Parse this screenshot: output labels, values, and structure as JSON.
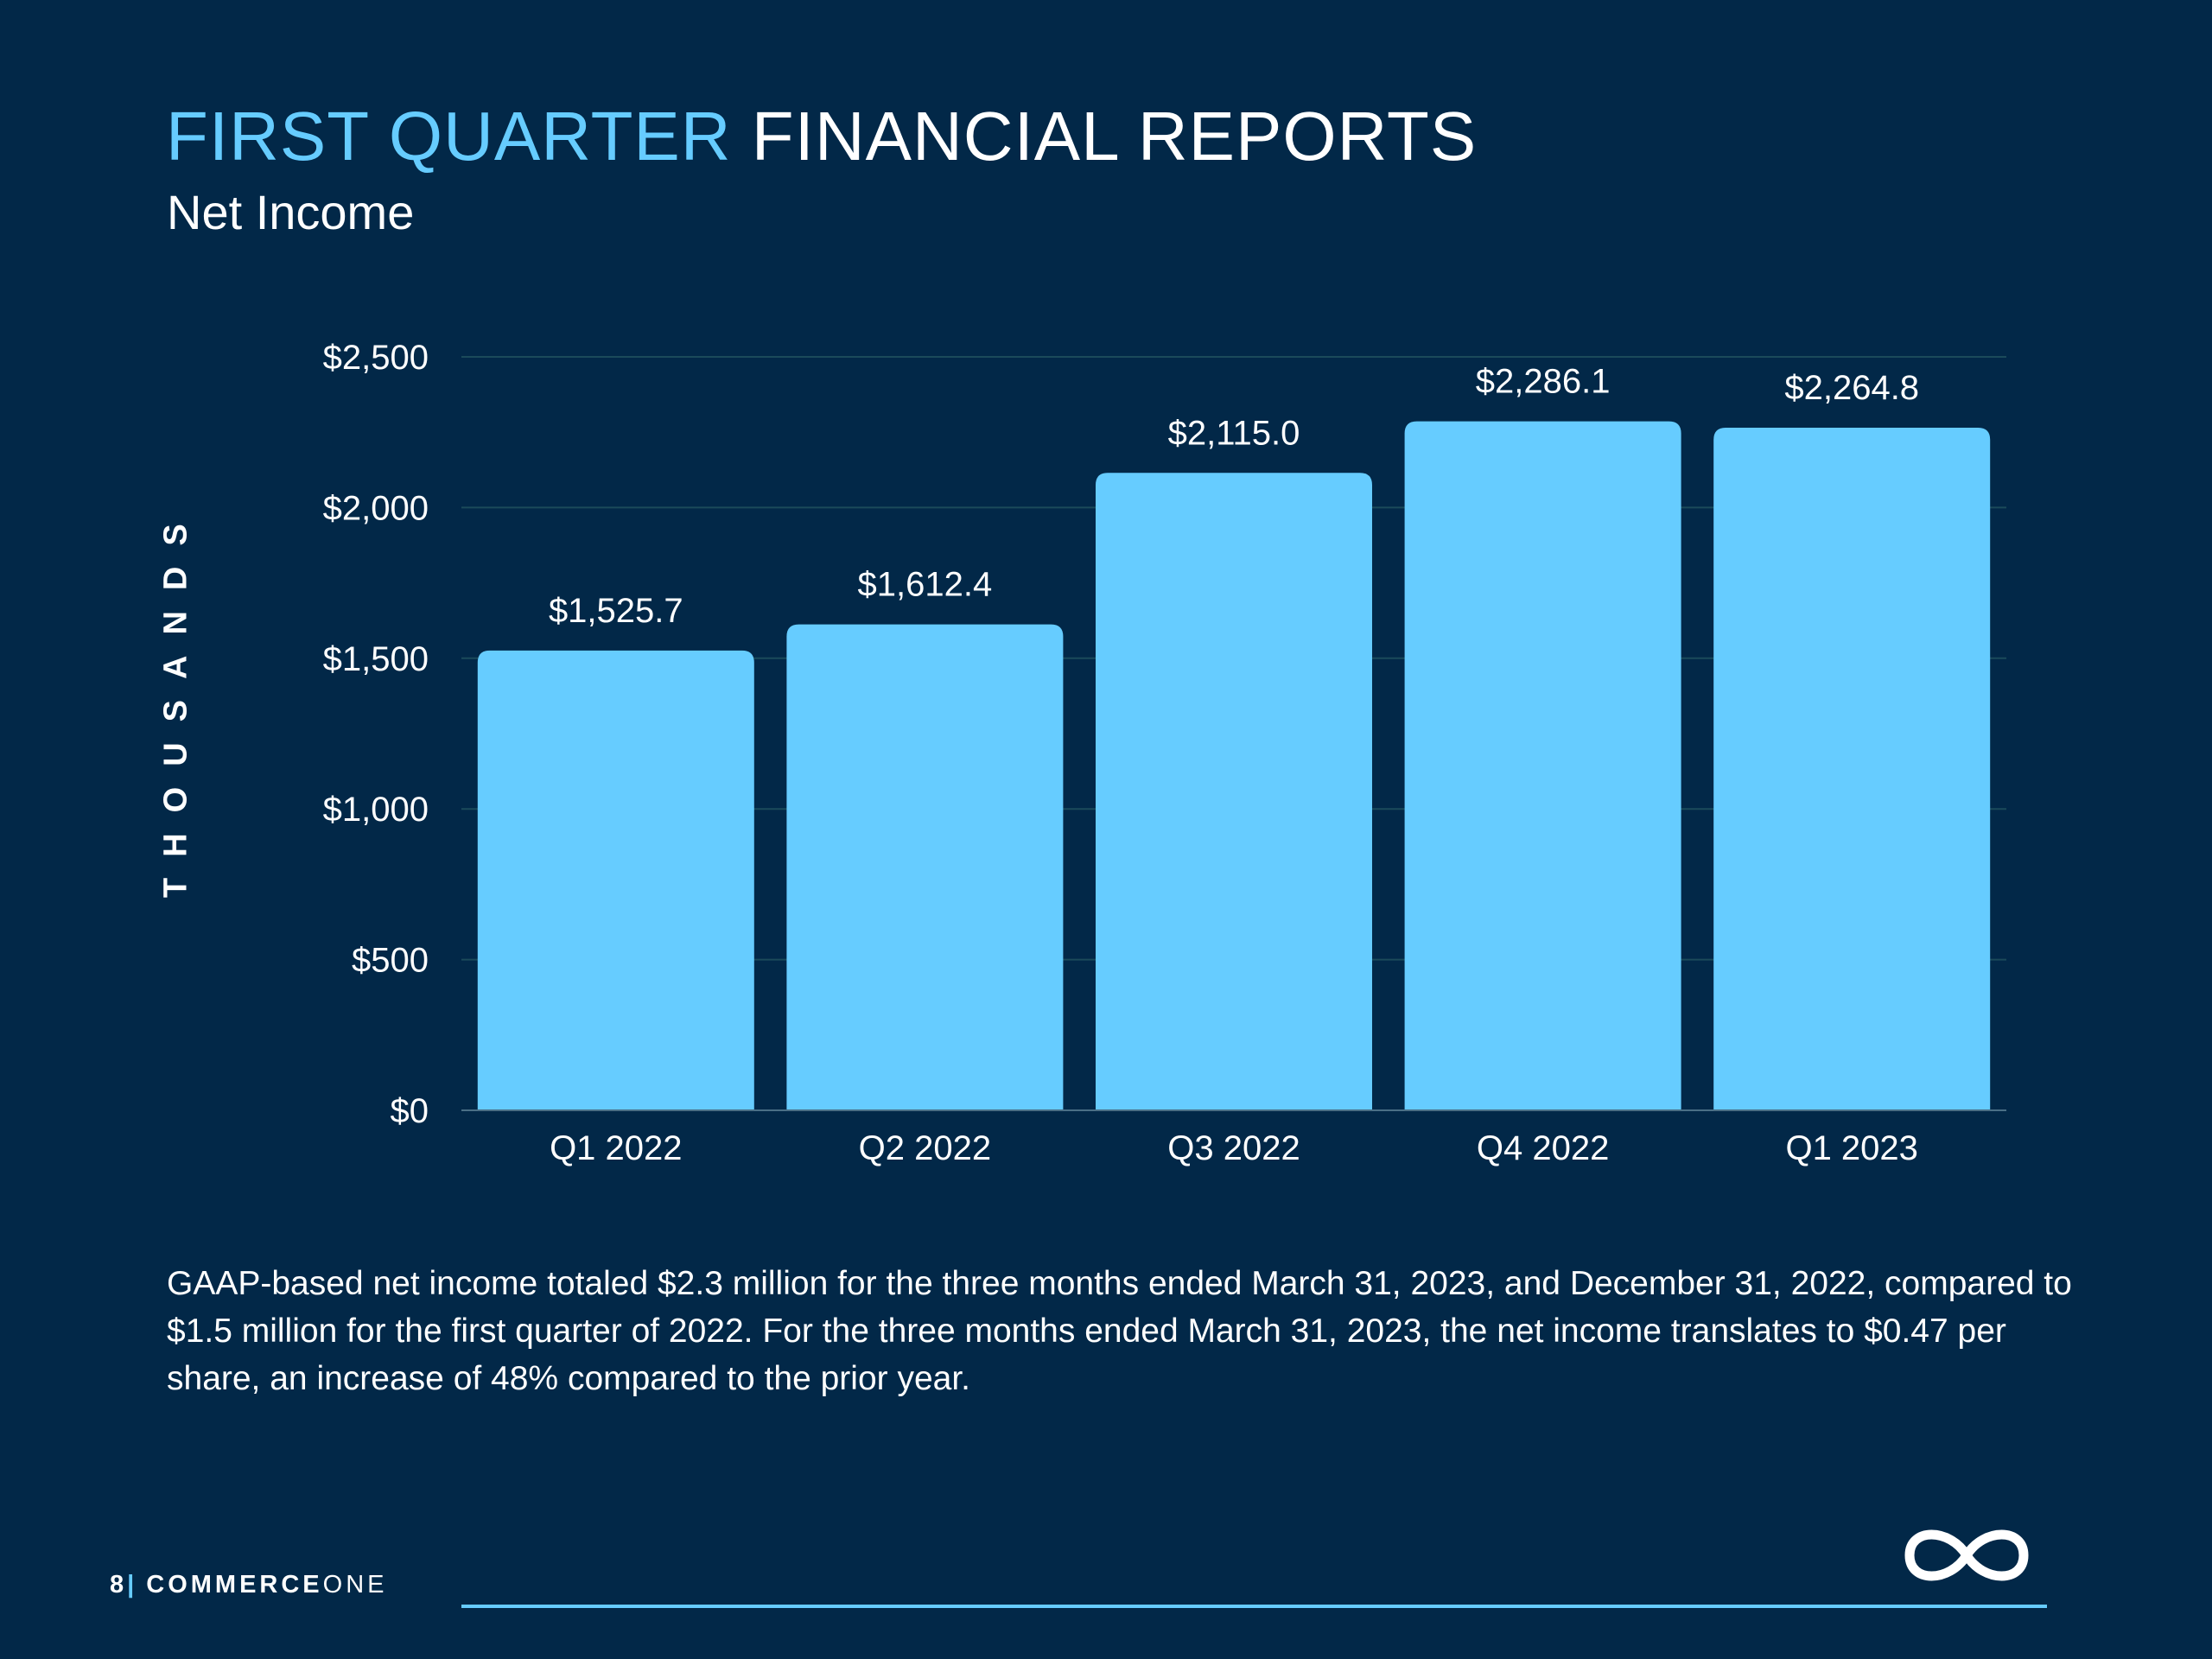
{
  "slide": {
    "title_accent": "FIRST QUARTER",
    "title_rest": "FINANCIAL REPORTS",
    "subtitle": "Net Income",
    "body": "GAAP-based net income totaled $2.3 million for the three months ended March 31, 2023, and December 31, 2022, compared to $1.5 million for the first quarter of 2022. For the three months ended March 31, 2023, the net income translates to $0.47 per share, an increase of 48% compared to the prior year.",
    "page_number": "8",
    "page_separator": "|",
    "brand_bold": "COMMERCE",
    "brand_light": "ONE",
    "logo_icon": "infinity-icon"
  },
  "colors": {
    "background": "#022848",
    "accent": "#66ccff",
    "bar": "#66ccff",
    "text": "#ffffff",
    "gridline": "#1b4a5a"
  },
  "chart_data": {
    "type": "bar",
    "title": "Net Income",
    "ylabel": "THOUSANDS",
    "xlabel": "",
    "categories": [
      "Q1 2022",
      "Q2 2022",
      "Q3 2022",
      "Q4 2022",
      "Q1 2023"
    ],
    "values": [
      1525.7,
      1612.4,
      2115.0,
      2286.1,
      2264.8
    ],
    "value_labels": [
      "$1,525.7",
      "$1,612.4",
      "$2,115.0",
      "$2,286.1",
      "$2,264.8"
    ],
    "ylim": [
      0,
      2500
    ],
    "yticks": [
      0,
      500,
      1000,
      1500,
      2000,
      2500
    ],
    "ytick_labels": [
      "$0",
      "$500",
      "$1,000",
      "$1,500",
      "$2,000",
      "$2,500"
    ],
    "grid": true,
    "legend": "none"
  }
}
